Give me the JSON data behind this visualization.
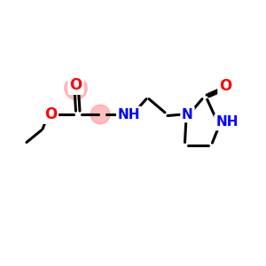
{
  "background_color": "#ffffff",
  "bond_color": "#000000",
  "bond_width": 2.2,
  "atom_colors": {
    "O": "#ff0000",
    "N": "#0000ff",
    "C": "#000000"
  },
  "highlight_color": "#ff8888",
  "highlight_alpha": 0.55,
  "figsize": [
    3.0,
    3.0
  ],
  "dpi": 100,
  "xlim": [
    0,
    10
  ],
  "ylim": [
    0,
    10
  ]
}
